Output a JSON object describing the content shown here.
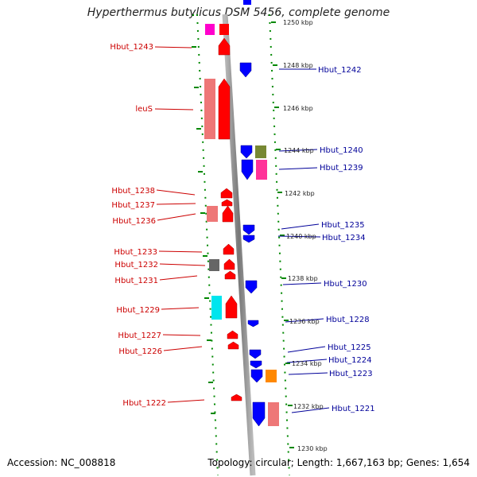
{
  "header": {
    "title": "Hyperthermus butylicus DSM 5456, complete genome"
  },
  "footer": {
    "accession": "Accession: NC_008818",
    "topology": "Topology: circular; Length: 1,667,163 bp; Genes: 1,654"
  },
  "colors": {
    "forward_gene": "#ff0000",
    "reverse_gene": "#0000ff",
    "left_label": "#cc0000",
    "right_label": "#000099",
    "scale_dots": "#008800",
    "backbone": "#888888"
  },
  "scale_labels": [
    "1250 kbp",
    "1248 kbp",
    "1246 kbp",
    "1244 kbp",
    "1242 kbp",
    "1240 kbp",
    "1238 kbp",
    "1236 kbp",
    "1234 kbp",
    "1232 kbp",
    "1230 kbp"
  ],
  "left_genes": [
    "Hbut_1243",
    "leuS",
    "Hbut_1238",
    "Hbut_1237",
    "Hbut_1236",
    "Hbut_1233",
    "Hbut_1232",
    "Hbut_1231",
    "Hbut_1229",
    "Hbut_1227",
    "Hbut_1226",
    "Hbut_1222"
  ],
  "right_genes": [
    "Hbut_1242",
    "Hbut_1240",
    "Hbut_1239",
    "Hbut_1235",
    "Hbut_1234",
    "Hbut_1230",
    "Hbut_1228",
    "Hbut_1225",
    "Hbut_1224",
    "Hbut_1223",
    "Hbut_1221"
  ]
}
